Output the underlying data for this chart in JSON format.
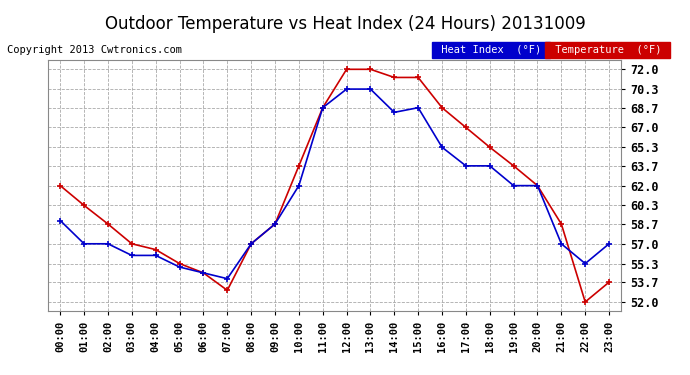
{
  "title": "Outdoor Temperature vs Heat Index (24 Hours) 20131009",
  "copyright": "Copyright 2013 Cwtronics.com",
  "hours": [
    "00:00",
    "01:00",
    "02:00",
    "03:00",
    "04:00",
    "05:00",
    "06:00",
    "07:00",
    "08:00",
    "09:00",
    "10:00",
    "11:00",
    "12:00",
    "13:00",
    "14:00",
    "15:00",
    "16:00",
    "17:00",
    "18:00",
    "19:00",
    "20:00",
    "21:00",
    "22:00",
    "23:00"
  ],
  "temperature": [
    62.0,
    60.3,
    58.7,
    57.0,
    56.5,
    55.3,
    54.5,
    53.0,
    57.0,
    58.7,
    63.7,
    68.7,
    72.0,
    72.0,
    71.3,
    71.3,
    68.7,
    67.0,
    65.3,
    63.7,
    62.0,
    58.7,
    52.0,
    53.7
  ],
  "heat_index": [
    59.0,
    57.0,
    57.0,
    56.0,
    56.0,
    55.0,
    54.5,
    54.0,
    57.0,
    58.7,
    62.0,
    68.7,
    70.3,
    70.3,
    68.3,
    68.7,
    65.3,
    63.7,
    63.7,
    62.0,
    62.0,
    57.0,
    55.3,
    57.0
  ],
  "yticks": [
    52.0,
    53.7,
    55.3,
    57.0,
    58.7,
    60.3,
    62.0,
    63.7,
    65.3,
    67.0,
    68.7,
    70.3,
    72.0
  ],
  "ylim": [
    51.2,
    72.8
  ],
  "bg_color": "#ffffff",
  "grid_color": "#aaaaaa",
  "temp_color": "#cc0000",
  "heat_color": "#0000cc",
  "title_fontsize": 12,
  "copyright_fontsize": 7.5,
  "legend_heat_bg": "#0000cc",
  "legend_temp_bg": "#cc0000"
}
